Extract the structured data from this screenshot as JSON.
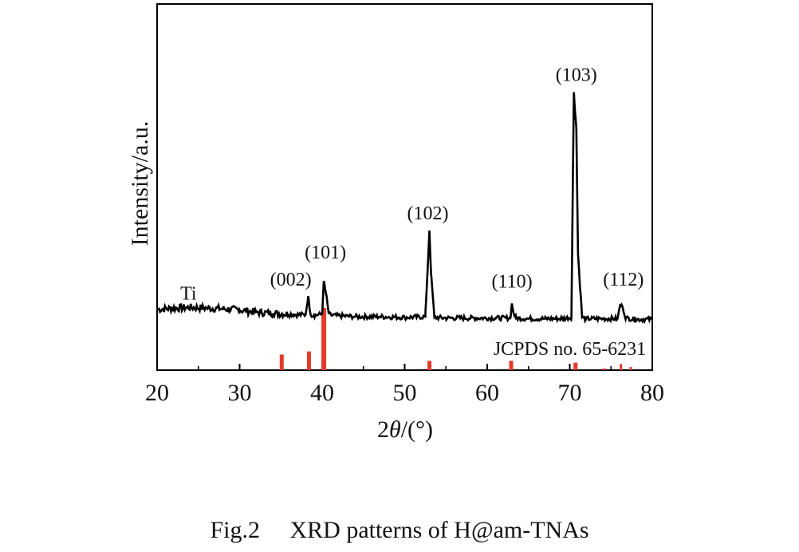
{
  "chart_data": {
    "type": "line",
    "xlabel_prefix": "2",
    "xlabel_theta": "θ",
    "xlabel_suffix": "/(°)",
    "ylabel": "Intensity/a.u.",
    "xlim": [
      20,
      80
    ],
    "x_ticks": [
      20,
      30,
      40,
      50,
      60,
      70,
      80
    ],
    "grid": false,
    "series": [
      {
        "name": "Ti",
        "x": [
          20,
          22,
          24,
          26,
          28,
          30,
          32,
          34,
          36,
          37,
          38,
          38.3,
          38.6,
          39,
          40,
          40.2,
          40.5,
          40.8,
          41.2,
          44,
          47,
          50,
          52.5,
          53.0,
          53.2,
          53.6,
          55,
          58,
          61,
          62.8,
          63.0,
          63.2,
          63.5,
          65,
          67,
          69,
          70.2,
          70.5,
          70.8,
          71.0,
          71.5,
          72,
          74,
          75.8,
          76.1,
          76.4,
          76.8,
          78,
          80
        ],
        "y": [
          1.7,
          1.9,
          2.0,
          1.9,
          1.8,
          1.6,
          1.3,
          1.1,
          1.0,
          0.9,
          0.9,
          3.7,
          0.9,
          0.8,
          1.0,
          6.0,
          3.8,
          1.0,
          0.8,
          0.6,
          0.6,
          0.5,
          0.6,
          13.6,
          7.0,
          0.5,
          0.4,
          0.4,
          0.4,
          0.4,
          2.6,
          1.1,
          0.4,
          0.3,
          0.3,
          0.3,
          0.5,
          34.5,
          29.0,
          10.0,
          0.5,
          0.3,
          0.3,
          0.3,
          2.3,
          2.1,
          0.4,
          0.2,
          0.2
        ]
      },
      {
        "name": "JCPDS no. 65-6231",
        "type": "stick",
        "x": [
          35.1,
          38.4,
          40.2,
          53.0,
          62.9,
          70.7,
          74.2,
          76.2,
          77.4
        ],
        "y": [
          25,
          30,
          100,
          15,
          15,
          12,
          3,
          10,
          5
        ]
      }
    ],
    "annotations": [
      {
        "text": "Ti",
        "x": 23.8,
        "y": 3.2
      },
      {
        "text": "(002)",
        "x": 36.2,
        "y": 5.3
      },
      {
        "text": "(101)",
        "x": 40.4,
        "y": 9.4
      },
      {
        "text": "(102)",
        "x": 52.8,
        "y": 15.3
      },
      {
        "text": "(110)",
        "x": 63.0,
        "y": 5.0
      },
      {
        "text": "(103)",
        "x": 70.8,
        "y": 36.2
      },
      {
        "text": "(112)",
        "x": 76.5,
        "y": 5.3
      },
      {
        "text": "JCPDS no. 65-6231",
        "x": 70.0,
        "y": -3.3
      }
    ]
  },
  "caption": {
    "label": "Fig.2",
    "text": "XRD patterns of H@am-TNAs"
  }
}
